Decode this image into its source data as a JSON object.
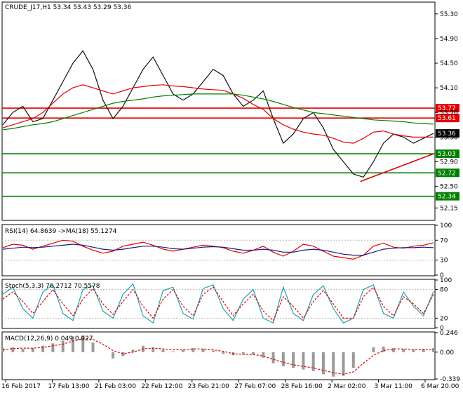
{
  "chart_data": {
    "type": "line",
    "main": {
      "title": "CRUDE_J17,H1  53.34 53.43 53.29 53.36",
      "ylim": [
        51.96,
        55.48
      ],
      "yticks": [
        "55.30",
        "54.90",
        "54.50",
        "54.10",
        "53.70",
        "53.30",
        "52.90",
        "52.50",
        "52.15"
      ],
      "price_tags": [
        {
          "label": "53.77",
          "value": 53.77,
          "color": "#e00000"
        },
        {
          "label": "53.61",
          "value": 53.61,
          "color": "#e00000"
        },
        {
          "label": "53.36",
          "value": 53.36,
          "color": "#000000"
        },
        {
          "label": "53.03",
          "value": 53.03,
          "color": "#008000"
        },
        {
          "label": "52.72",
          "value": 52.72,
          "color": "#008000"
        },
        {
          "label": "52.34",
          "value": 52.34,
          "color": "#008000"
        }
      ],
      "series": [
        {
          "color": "#111111",
          "values": [
            53.5,
            53.7,
            53.8,
            53.55,
            53.6,
            53.9,
            54.2,
            54.5,
            54.7,
            54.4,
            53.9,
            53.6,
            53.8,
            54.1,
            54.4,
            54.6,
            54.3,
            54.0,
            53.9,
            54.0,
            54.2,
            54.4,
            54.3,
            54.0,
            53.8,
            53.9,
            54.05,
            53.6,
            53.2,
            53.35,
            53.6,
            53.7,
            53.45,
            53.1,
            52.9,
            52.7,
            52.65,
            52.9,
            53.2,
            53.35,
            53.3,
            53.2,
            53.28,
            53.36
          ]
        },
        {
          "color": "#e00000",
          "values": [
            53.45,
            53.5,
            53.55,
            53.6,
            53.7,
            53.85,
            54.0,
            54.1,
            54.15,
            54.1,
            54.05,
            54.0,
            54.05,
            54.1,
            54.12,
            54.14,
            54.15,
            54.13,
            54.12,
            54.1,
            54.08,
            54.07,
            54.06,
            54.0,
            53.93,
            53.83,
            53.75,
            53.6,
            53.5,
            53.43,
            53.38,
            53.35,
            53.33,
            53.28,
            53.22,
            53.2,
            53.28,
            53.38,
            53.4,
            53.35,
            53.32,
            53.3,
            53.3,
            53.3
          ]
        },
        {
          "color": "#008000",
          "values": [
            53.42,
            53.44,
            53.47,
            53.5,
            53.52,
            53.55,
            53.6,
            53.65,
            53.7,
            53.75,
            53.8,
            53.85,
            53.88,
            53.9,
            53.92,
            53.95,
            53.97,
            53.98,
            53.99,
            54.0,
            54.0,
            54.0,
            54.0,
            54.0,
            53.98,
            53.95,
            53.92,
            53.88,
            53.83,
            53.78,
            53.74,
            53.7,
            53.68,
            53.66,
            53.64,
            53.62,
            53.6,
            53.58,
            53.57,
            53.56,
            53.55,
            53.53,
            53.52,
            53.51
          ]
        }
      ],
      "hlines": [
        {
          "value": 53.77,
          "color": "#e00000"
        },
        {
          "value": 53.61,
          "color": "#e00000"
        },
        {
          "value": 53.03,
          "color": "#008000"
        },
        {
          "value": 52.72,
          "color": "#008000"
        },
        {
          "value": 52.34,
          "color": "#008000"
        }
      ],
      "trendline": {
        "from": [
          0.83,
          52.58
        ],
        "to": [
          1.0,
          53.03
        ],
        "color": "#e00000"
      }
    },
    "rsi": {
      "title": "RSI(14) 64.8639  ->MA(18) 55.1274",
      "ylim": [
        0,
        100
      ],
      "yticks": [
        "100",
        "70",
        "30",
        "0"
      ],
      "series": [
        {
          "color": "#e00000",
          "values": [
            55,
            62,
            60,
            52,
            58,
            64,
            70,
            68,
            58,
            50,
            44,
            48,
            58,
            62,
            66,
            60,
            52,
            48,
            52,
            56,
            60,
            58,
            55,
            48,
            44,
            50,
            58,
            46,
            38,
            48,
            62,
            58,
            48,
            38,
            35,
            32,
            40,
            58,
            64,
            56,
            54,
            58,
            60,
            65
          ]
        },
        {
          "color": "#1a1a80",
          "values": [
            52,
            54,
            56,
            55,
            56,
            58,
            60,
            62,
            60,
            56,
            52,
            50,
            52,
            55,
            58,
            58,
            56,
            53,
            52,
            54,
            56,
            57,
            56,
            53,
            50,
            50,
            52,
            50,
            46,
            46,
            50,
            52,
            50,
            46,
            42,
            40,
            40,
            46,
            52,
            54,
            55,
            55,
            56,
            55
          ]
        }
      ]
    },
    "stoch": {
      "title": "Stoch(5,3,3) 76.2712 70.5578",
      "ylim": [
        0,
        100
      ],
      "yticks": [
        "100",
        "80",
        "20",
        "0"
      ],
      "series": [
        {
          "color": "#20a0b0",
          "values": [
            70,
            85,
            40,
            20,
            75,
            90,
            30,
            15,
            80,
            88,
            35,
            20,
            70,
            92,
            25,
            10,
            78,
            85,
            30,
            18,
            82,
            90,
            40,
            15,
            60,
            80,
            20,
            10,
            85,
            30,
            15,
            70,
            88,
            40,
            10,
            20,
            80,
            90,
            30,
            20,
            75,
            45,
            25,
            76
          ]
        },
        {
          "color": "#e00000",
          "values": [
            60,
            75,
            55,
            30,
            55,
            80,
            50,
            25,
            60,
            82,
            50,
            28,
            55,
            80,
            45,
            20,
            60,
            80,
            45,
            25,
            70,
            85,
            55,
            25,
            50,
            70,
            35,
            15,
            65,
            45,
            20,
            55,
            78,
            50,
            20,
            20,
            65,
            85,
            45,
            25,
            65,
            50,
            30,
            70
          ]
        }
      ]
    },
    "macd": {
      "title": "MACD(12,26,9) 0.049 0.027",
      "ylim": [
        -0.339,
        0.246
      ],
      "yticks": [
        "0.246",
        "0.00",
        "-0.339"
      ],
      "histogram": [
        0.05,
        0.06,
        0.04,
        0.05,
        0.08,
        0.11,
        0.14,
        0.2,
        0.21,
        0.12,
        0.0,
        -0.08,
        -0.05,
        0.03,
        0.08,
        0.06,
        0.03,
        0.01,
        0.03,
        0.05,
        0.04,
        0.02,
        -0.02,
        -0.04,
        -0.02,
        -0.03,
        -0.07,
        -0.14,
        -0.18,
        -0.2,
        -0.22,
        -0.24,
        -0.28,
        -0.31,
        -0.3,
        -0.2,
        0.0,
        0.06,
        0.07,
        0.05,
        0.04,
        0.03,
        0.04,
        0.05
      ],
      "signal": [
        0.03,
        0.045,
        0.05,
        0.05,
        0.06,
        0.08,
        0.1,
        0.14,
        0.17,
        0.16,
        0.1,
        0.02,
        -0.02,
        0.0,
        0.04,
        0.05,
        0.04,
        0.03,
        0.03,
        0.04,
        0.04,
        0.03,
        0.01,
        -0.02,
        -0.03,
        -0.03,
        -0.05,
        -0.09,
        -0.13,
        -0.16,
        -0.18,
        -0.2,
        -0.23,
        -0.26,
        -0.28,
        -0.25,
        -0.14,
        -0.04,
        0.02,
        0.04,
        0.04,
        0.03,
        0.03,
        0.03
      ],
      "histogram_color": "#9a9a9a",
      "signal_color": "#e00000"
    },
    "x_labels": [
      "16 Feb 2017",
      "17 Feb 13:00",
      "21 Feb 03:00",
      "22 Feb 12:00",
      "23 Feb 21:00",
      "27 Feb 07:00",
      "28 Feb 16:00",
      "2 Mar 02:00",
      "3 Mar 11:00",
      "6 Mar 20:00"
    ]
  }
}
